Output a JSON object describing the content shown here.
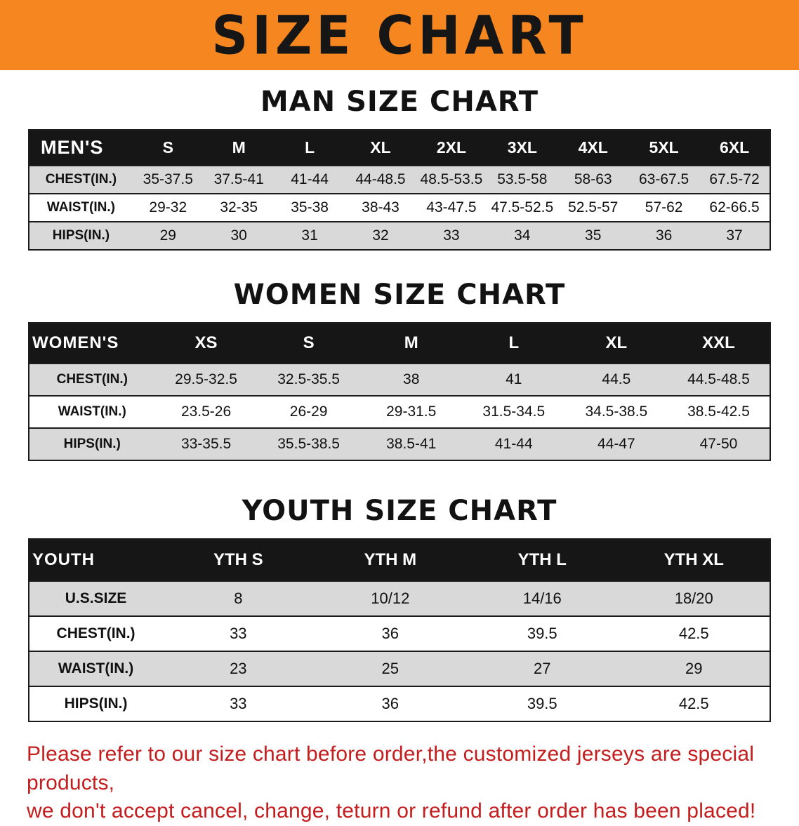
{
  "banner": {
    "title": "SIZE CHART",
    "bg_color": "#f6861f"
  },
  "sections": [
    {
      "heading": "MAN SIZE CHART",
      "table": {
        "header": [
          "MEN'S",
          "S",
          "M",
          "L",
          "XL",
          "2XL",
          "3XL",
          "4XL",
          "5XL",
          "6XL"
        ],
        "rows": [
          [
            "CHEST(IN.)",
            "35-37.5",
            "37.5-41",
            "41-44",
            "44-48.5",
            "48.5-53.5",
            "53.5-58",
            "58-63",
            "63-67.5",
            "67.5-72"
          ],
          [
            "WAIST(IN.)",
            "29-32",
            "32-35",
            "35-38",
            "38-43",
            "43-47.5",
            "47.5-52.5",
            "52.5-57",
            "57-62",
            "62-66.5"
          ],
          [
            "HIPS(IN.)",
            "29",
            "30",
            "31",
            "32",
            "33",
            "34",
            "35",
            "36",
            "37"
          ]
        ]
      }
    },
    {
      "heading": "WOMEN SIZE CHART",
      "table": {
        "header": [
          "WOMEN'S",
          "XS",
          "S",
          "M",
          "L",
          "XL",
          "XXL"
        ],
        "rows": [
          [
            "CHEST(IN.)",
            "29.5-32.5",
            "32.5-35.5",
            "38",
            "41",
            "44.5",
            "44.5-48.5"
          ],
          [
            "WAIST(IN.)",
            "23.5-26",
            "26-29",
            "29-31.5",
            "31.5-34.5",
            "34.5-38.5",
            "38.5-42.5"
          ],
          [
            "HIPS(IN.)",
            "33-35.5",
            "35.5-38.5",
            "38.5-41",
            "41-44",
            "44-47",
            "47-50"
          ]
        ]
      }
    },
    {
      "heading": "YOUTH SIZE CHART",
      "table": {
        "header": [
          "YOUTH",
          "YTH S",
          "YTH M",
          "YTH L",
          "YTH XL"
        ],
        "rows": [
          [
            "U.S.SIZE",
            "8",
            "10/12",
            "14/16",
            "18/20"
          ],
          [
            "CHEST(IN.)",
            "33",
            "36",
            "39.5",
            "42.5"
          ],
          [
            "WAIST(IN.)",
            "23",
            "25",
            "27",
            "29"
          ],
          [
            "HIPS(IN.)",
            "33",
            "36",
            "39.5",
            "42.5"
          ]
        ]
      }
    }
  ],
  "footer_note": {
    "line1": "Please refer to our size chart before order,the customized jerseys are special products,",
    "line2": "we don't accept cancel, change, teturn or refund after order has been placed!",
    "color": "#c41d1d"
  }
}
